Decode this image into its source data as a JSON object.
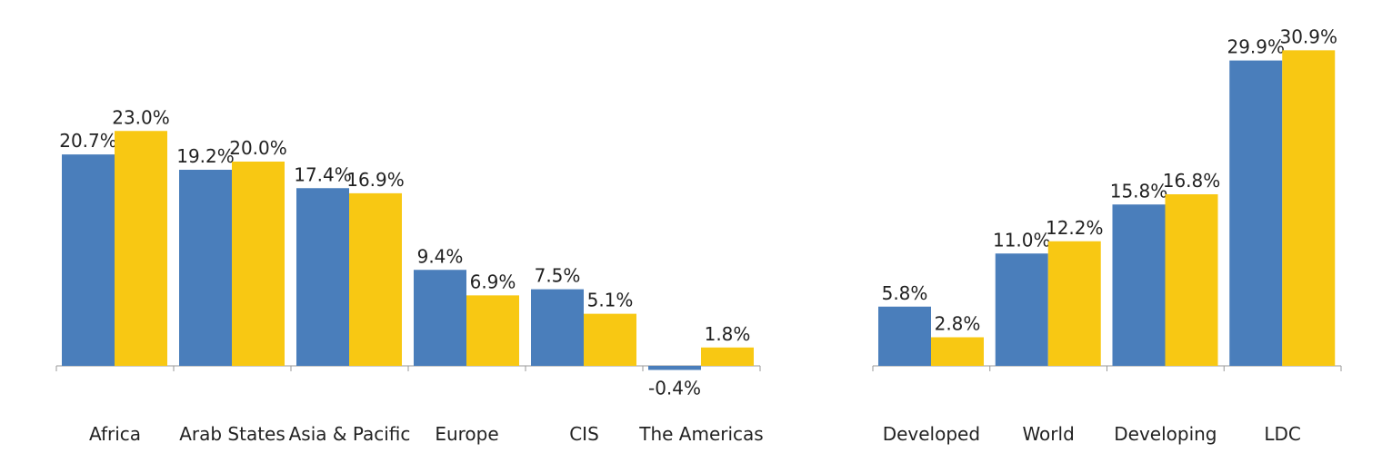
{
  "colors": {
    "series_a": "#4a7ebb",
    "series_b": "#f8c813",
    "axis": "#999999"
  },
  "chart_data": [
    {
      "type": "bar",
      "title": "",
      "xlabel": "",
      "ylabel": "",
      "legend": "none",
      "grid": false,
      "categories": [
        "Africa",
        "Arab States",
        "Asia & Pacific",
        "Europe",
        "CIS",
        "The Americas"
      ],
      "series": [
        {
          "values": [
            20.7,
            19.2,
            17.4,
            9.4,
            7.5,
            -0.4
          ],
          "labels": [
            "20.7%",
            "19.2%",
            "17.4%",
            "9.4%",
            "7.5%",
            "-0.4%"
          ]
        },
        {
          "values": [
            23.0,
            20.0,
            16.9,
            6.9,
            5.1,
            1.8
          ],
          "labels": [
            "23.0%",
            "20.0%",
            "16.9%",
            "6.9%",
            "5.1%",
            "1.8%"
          ]
        }
      ]
    },
    {
      "type": "bar",
      "title": "",
      "xlabel": "",
      "ylabel": "",
      "legend": "none",
      "grid": false,
      "categories": [
        "Developed",
        "World",
        "Developing",
        "LDC"
      ],
      "series": [
        {
          "values": [
            5.8,
            11.0,
            15.8,
            29.9
          ],
          "labels": [
            "5.8%",
            "11.0%",
            "15.8%",
            "29.9%"
          ]
        },
        {
          "values": [
            2.8,
            12.2,
            16.8,
            30.9
          ],
          "labels": [
            "2.8%",
            "12.2%",
            "16.8%",
            "30.9%"
          ]
        }
      ]
    }
  ]
}
